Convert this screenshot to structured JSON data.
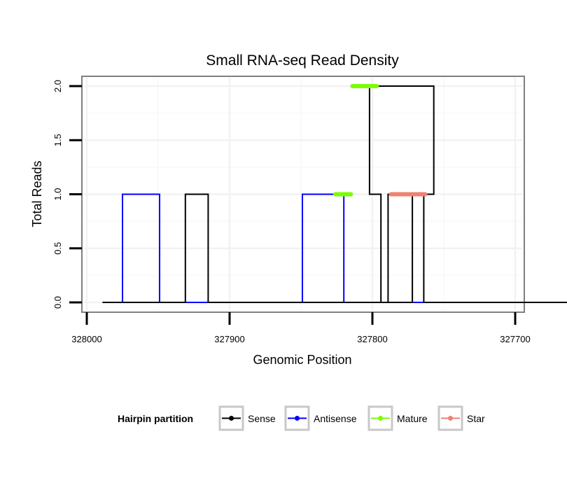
{
  "chart_data": {
    "type": "line",
    "title": "Small RNA-seq Read Density",
    "xlabel": "Genomic Position",
    "ylabel": "Total Reads",
    "xlim": [
      328000,
      327700
    ],
    "x_reversed": true,
    "ylim": [
      0,
      2
    ],
    "x_ticks": [
      328000,
      327900,
      327800,
      327700
    ],
    "x_tick_labels": [
      "328000",
      "327900",
      "327800",
      "327700"
    ],
    "y_ticks": [
      0,
      0.5,
      1,
      1.5,
      2
    ],
    "y_tick_labels": [
      "0.0",
      "0.5",
      "1.0",
      "1.5",
      "2.0"
    ],
    "grid": true,
    "legend": {
      "title": "Hairpin partition",
      "position": "bottom",
      "entries": [
        {
          "label": "Sense",
          "color": "#000000"
        },
        {
          "label": "Antisense",
          "color": "#0000ff"
        },
        {
          "label": "Mature",
          "color": "#7cfc00"
        },
        {
          "label": "Star",
          "color": "#f08070"
        }
      ]
    },
    "series": [
      {
        "name": "Sense",
        "color": "#000000",
        "x": [
          327989,
          327931,
          327931,
          327915,
          327915,
          327897,
          327897,
          327772,
          327772,
          327757,
          327757,
          327802,
          327802,
          327798,
          327798,
          327794,
          327794,
          327789,
          327789,
          327764,
          327764,
          327744,
          327744,
          327635
        ],
        "y": [
          0,
          0,
          1,
          1,
          0,
          0,
          0,
          0,
          1,
          1,
          2,
          2,
          1,
          1,
          1,
          1,
          0,
          0,
          1,
          1,
          0,
          0,
          0,
          0
        ]
      },
      {
        "name": "Antisense",
        "color": "#0000ff",
        "x": [
          327989,
          327975,
          327975,
          327949,
          327949,
          327849,
          327849,
          327826,
          327826,
          327820,
          327820,
          327744
        ],
        "y": [
          0,
          0,
          1,
          1,
          0,
          0,
          1,
          1,
          1,
          1,
          0,
          0
        ]
      },
      {
        "name": "Mature",
        "color": "#7cfc00",
        "segments": [
          {
            "x": [
              327826,
              327815
            ],
            "y": [
              1,
              1
            ]
          },
          {
            "x": [
              327814,
              327797
            ],
            "y": [
              2,
              2
            ]
          }
        ]
      },
      {
        "name": "Star",
        "color": "#f08070",
        "segments": [
          {
            "x": [
              327787,
              327763
            ],
            "y": [
              1,
              1
            ]
          }
        ]
      }
    ]
  }
}
